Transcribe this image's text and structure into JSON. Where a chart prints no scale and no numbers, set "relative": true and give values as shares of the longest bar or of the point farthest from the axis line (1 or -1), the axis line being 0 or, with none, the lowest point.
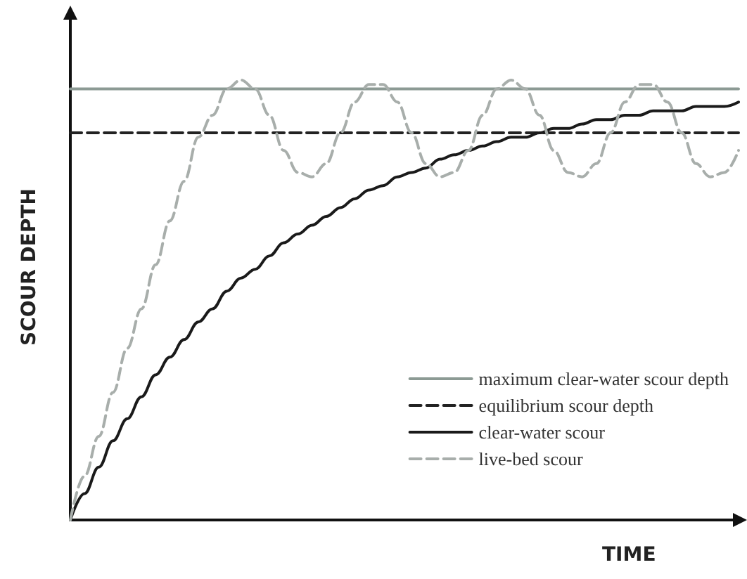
{
  "chart_data": {
    "type": "line",
    "relative": true,
    "xlabel": "TIME",
    "ylabel": "SCOUR DEPTH",
    "legend": "bottom right",
    "grid": false,
    "marker": "none",
    "categories": [
      null,
      null,
      null,
      null,
      null,
      null,
      null,
      null,
      null,
      null,
      null,
      null,
      null,
      null,
      null,
      null,
      null,
      null,
      null,
      null,
      null,
      null,
      null,
      null,
      null,
      null,
      null,
      null,
      null,
      null,
      null,
      null,
      null,
      null,
      null,
      null,
      null,
      null,
      null,
      null,
      null,
      null,
      null,
      null,
      null,
      null,
      null,
      null
    ],
    "series": [
      {
        "name": "maximum clear-water scour depth",
        "color": "#8c9a94",
        "line_style": "solid",
        "values": [
          0.98,
          0.98,
          0.98,
          0.98,
          0.98,
          0.98,
          0.98,
          0.98,
          0.98,
          0.98,
          0.98,
          0.98,
          0.98,
          0.98,
          0.98,
          0.98,
          0.98,
          0.98,
          0.98,
          0.98,
          0.98,
          0.98,
          0.98,
          0.98,
          0.98,
          0.98,
          0.98,
          0.98,
          0.98,
          0.98,
          0.98,
          0.98,
          0.98,
          0.98,
          0.98,
          0.98,
          0.98,
          0.98,
          0.98,
          0.98,
          0.98,
          0.98,
          0.98,
          0.98,
          0.98,
          0.98,
          0.98,
          0.98
        ]
      },
      {
        "name": "equilibrium scour depth",
        "color": "#222222",
        "line_style": "dashed",
        "values": [
          0.88,
          0.88,
          0.88,
          0.88,
          0.88,
          0.88,
          0.88,
          0.88,
          0.88,
          0.88,
          0.88,
          0.88,
          0.88,
          0.88,
          0.88,
          0.88,
          0.88,
          0.88,
          0.88,
          0.88,
          0.88,
          0.88,
          0.88,
          0.88,
          0.88,
          0.88,
          0.88,
          0.88,
          0.88,
          0.88,
          0.88,
          0.88,
          0.88,
          0.88,
          0.88,
          0.88,
          0.88,
          0.88,
          0.88,
          0.88,
          0.88,
          0.88,
          0.88,
          0.88,
          0.88,
          0.88,
          0.88,
          0.88
        ]
      },
      {
        "name": "clear-water scour",
        "color": "#1a1a1a",
        "line_style": "solid",
        "values": [
          0,
          0.06,
          0.12,
          0.18,
          0.23,
          0.28,
          0.33,
          0.37,
          0.41,
          0.45,
          0.48,
          0.52,
          0.55,
          0.57,
          0.6,
          0.63,
          0.65,
          0.67,
          0.69,
          0.71,
          0.73,
          0.75,
          0.76,
          0.78,
          0.79,
          0.8,
          0.82,
          0.83,
          0.84,
          0.85,
          0.86,
          0.87,
          0.87,
          0.88,
          0.89,
          0.89,
          0.9,
          0.91,
          0.91,
          0.92,
          0.92,
          0.93,
          0.93,
          0.93,
          0.94,
          0.94,
          0.94,
          0.95
        ]
      },
      {
        "name": "live-bed scour",
        "color": "#a8aeab",
        "line_style": "dashed",
        "values": [
          0,
          0.1,
          0.19,
          0.29,
          0.39,
          0.48,
          0.58,
          0.68,
          0.77,
          0.87,
          0.92,
          0.98,
          1.0,
          0.98,
          0.92,
          0.84,
          0.79,
          0.78,
          0.81,
          0.88,
          0.95,
          0.99,
          0.99,
          0.95,
          0.88,
          0.81,
          0.78,
          0.79,
          0.84,
          0.92,
          0.98,
          1.0,
          0.98,
          0.92,
          0.84,
          0.79,
          0.78,
          0.81,
          0.88,
          0.95,
          0.99,
          0.99,
          0.95,
          0.88,
          0.81,
          0.78,
          0.79,
          0.84
        ]
      }
    ]
  }
}
